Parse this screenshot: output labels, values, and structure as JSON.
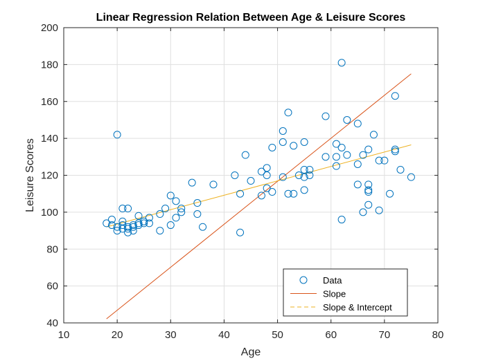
{
  "chart_data": {
    "type": "scatter",
    "title": "Linear Regression Relation Between Age & Leisure Scores",
    "xlabel": "Age",
    "ylabel": "Leisure Scores",
    "xlim": [
      10,
      80
    ],
    "ylim": [
      40,
      200
    ],
    "xticks": [
      10,
      20,
      30,
      40,
      50,
      60,
      70,
      80
    ],
    "yticks": [
      40,
      60,
      80,
      100,
      120,
      140,
      160,
      180,
      200
    ],
    "grid": true,
    "legend_position": "bottom-right",
    "series": [
      {
        "name": "Data",
        "kind": "markers",
        "marker": "circle",
        "color": "#0072BD",
        "points": [
          [
            18,
            94
          ],
          [
            19,
            93
          ],
          [
            19,
            96
          ],
          [
            20,
            92
          ],
          [
            20,
            90
          ],
          [
            20,
            142
          ],
          [
            21,
            95
          ],
          [
            21,
            93
          ],
          [
            21,
            91
          ],
          [
            21,
            102
          ],
          [
            22,
            92
          ],
          [
            22,
            89
          ],
          [
            22,
            102
          ],
          [
            22,
            91
          ],
          [
            23,
            92
          ],
          [
            23,
            93
          ],
          [
            23,
            90
          ],
          [
            24,
            94
          ],
          [
            24,
            93
          ],
          [
            24,
            98
          ],
          [
            25,
            94
          ],
          [
            25,
            95
          ],
          [
            26,
            97
          ],
          [
            26,
            94
          ],
          [
            28,
            90
          ],
          [
            28,
            99
          ],
          [
            29,
            102
          ],
          [
            30,
            109
          ],
          [
            30,
            93
          ],
          [
            31,
            97
          ],
          [
            31,
            106
          ],
          [
            32,
            102
          ],
          [
            32,
            100
          ],
          [
            34,
            116
          ],
          [
            35,
            105
          ],
          [
            35,
            99
          ],
          [
            36,
            92
          ],
          [
            38,
            115
          ],
          [
            42,
            120
          ],
          [
            43,
            110
          ],
          [
            43,
            89
          ],
          [
            44,
            131
          ],
          [
            45,
            117
          ],
          [
            47,
            109
          ],
          [
            47,
            122
          ],
          [
            48,
            124
          ],
          [
            48,
            120
          ],
          [
            48,
            113
          ],
          [
            49,
            135
          ],
          [
            49,
            111
          ],
          [
            51,
            144
          ],
          [
            51,
            138
          ],
          [
            51,
            119
          ],
          [
            52,
            154
          ],
          [
            52,
            110
          ],
          [
            53,
            110
          ],
          [
            53,
            136
          ],
          [
            54,
            120
          ],
          [
            55,
            123
          ],
          [
            55,
            112
          ],
          [
            55,
            119
          ],
          [
            55,
            138
          ],
          [
            56,
            123
          ],
          [
            56,
            120
          ],
          [
            59,
            152
          ],
          [
            59,
            130
          ],
          [
            61,
            137
          ],
          [
            61,
            125
          ],
          [
            61,
            130
          ],
          [
            62,
            181
          ],
          [
            62,
            135
          ],
          [
            62,
            96
          ],
          [
            63,
            131
          ],
          [
            63,
            150
          ],
          [
            65,
            148
          ],
          [
            65,
            126
          ],
          [
            65,
            115
          ],
          [
            66,
            131
          ],
          [
            66,
            100
          ],
          [
            67,
            134
          ],
          [
            67,
            112
          ],
          [
            67,
            115
          ],
          [
            67,
            111
          ],
          [
            67,
            104
          ],
          [
            68,
            142
          ],
          [
            69,
            128
          ],
          [
            69,
            101
          ],
          [
            70,
            128
          ],
          [
            71,
            110
          ],
          [
            72,
            133
          ],
          [
            72,
            134
          ],
          [
            72,
            163
          ],
          [
            73,
            123
          ],
          [
            75,
            119
          ]
        ]
      },
      {
        "name": "Slope",
        "kind": "line",
        "color": "#D95319",
        "dash": "solid",
        "x": [
          18,
          75
        ],
        "y": [
          42.2,
          175
        ]
      },
      {
        "name": "Slope & Intercept",
        "kind": "line",
        "color": "#EDB120",
        "dash": "solid",
        "x": [
          18,
          75
        ],
        "y": [
          92,
          136.5
        ]
      }
    ],
    "legend": {
      "entries": [
        "Data",
        "Slope",
        "Slope & Intercept"
      ]
    }
  }
}
